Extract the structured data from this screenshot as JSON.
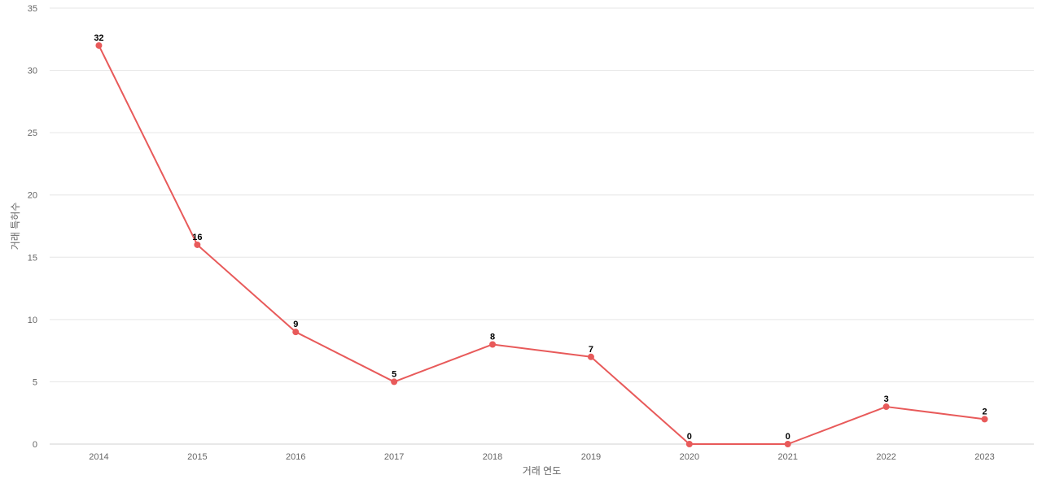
{
  "chart_data": {
    "type": "line",
    "title": "",
    "xlabel": "거래 연도",
    "ylabel": "거래 특허수",
    "categories": [
      "2014",
      "2015",
      "2016",
      "2017",
      "2018",
      "2019",
      "2020",
      "2021",
      "2022",
      "2023"
    ],
    "series": [
      {
        "name": "",
        "values": [
          32,
          16,
          9,
          5,
          8,
          7,
          0,
          0,
          3,
          2
        ],
        "color": "#e85a5a"
      }
    ],
    "ylim": [
      0,
      35
    ],
    "yticks": [
      0,
      5,
      10,
      15,
      20,
      25,
      30,
      35
    ],
    "grid": true,
    "legend": "none",
    "data_labels": true
  }
}
